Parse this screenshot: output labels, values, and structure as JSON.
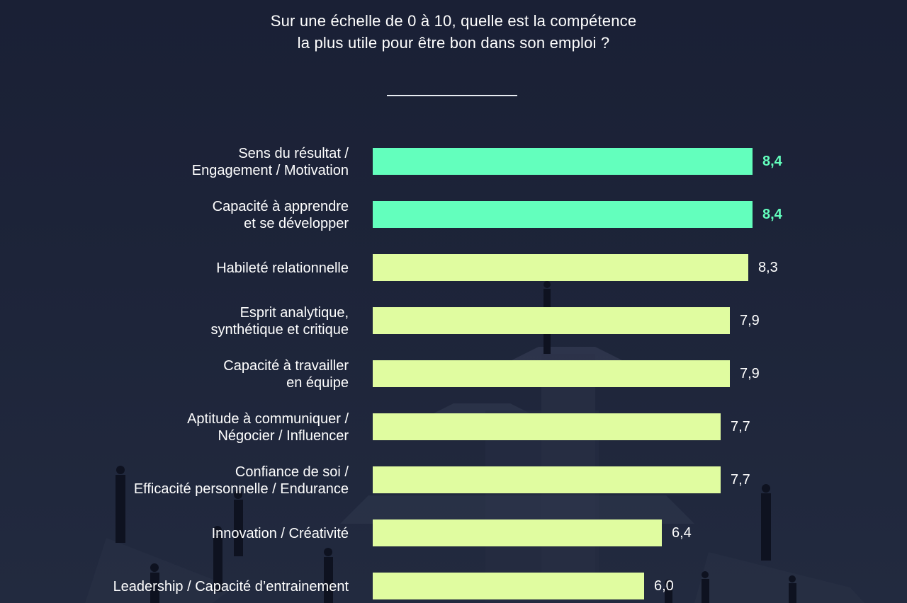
{
  "title": {
    "line1": "Sur une échelle de 0 à 10, quelle est la compétence",
    "line2": "la plus utile pour être bon dans son emploi ?"
  },
  "colors": {
    "highlight": "#63ffbd",
    "normal": "#e0fca0",
    "text": "#ffffff"
  },
  "chart_data": {
    "type": "bar",
    "orientation": "horizontal",
    "title": "Sur une échelle de 0 à 10, quelle est la compétence la plus utile pour être bon dans son emploi ?",
    "xlim": [
      0,
      10
    ],
    "categories": [
      [
        "Sens du résultat /",
        "Engagement / Motivation"
      ],
      [
        "Capacité à apprendre",
        "et se développer"
      ],
      [
        "Habileté relationnelle"
      ],
      [
        "Esprit analytique,",
        "synthétique et critique"
      ],
      [
        "Capacité à travailler",
        "en équipe"
      ],
      [
        "Aptitude à communiquer /",
        "Négocier / Influencer"
      ],
      [
        "Confiance de soi /",
        "Efficacité personnelle / Endurance"
      ],
      [
        "Innovation / Créativité"
      ],
      [
        "Leadership / Capacité d’entrainement"
      ]
    ],
    "values": [
      8.4,
      8.4,
      8.3,
      7.9,
      7.9,
      7.7,
      7.7,
      6.4,
      6.0
    ],
    "value_labels": [
      "8,4",
      "8,4",
      "8,3",
      "7,9",
      "7,9",
      "7,7",
      "7,7",
      "6,4",
      "6,0"
    ],
    "highlighted": [
      true,
      true,
      false,
      false,
      false,
      false,
      false,
      false,
      false
    ],
    "grid": false,
    "legend": "none"
  }
}
